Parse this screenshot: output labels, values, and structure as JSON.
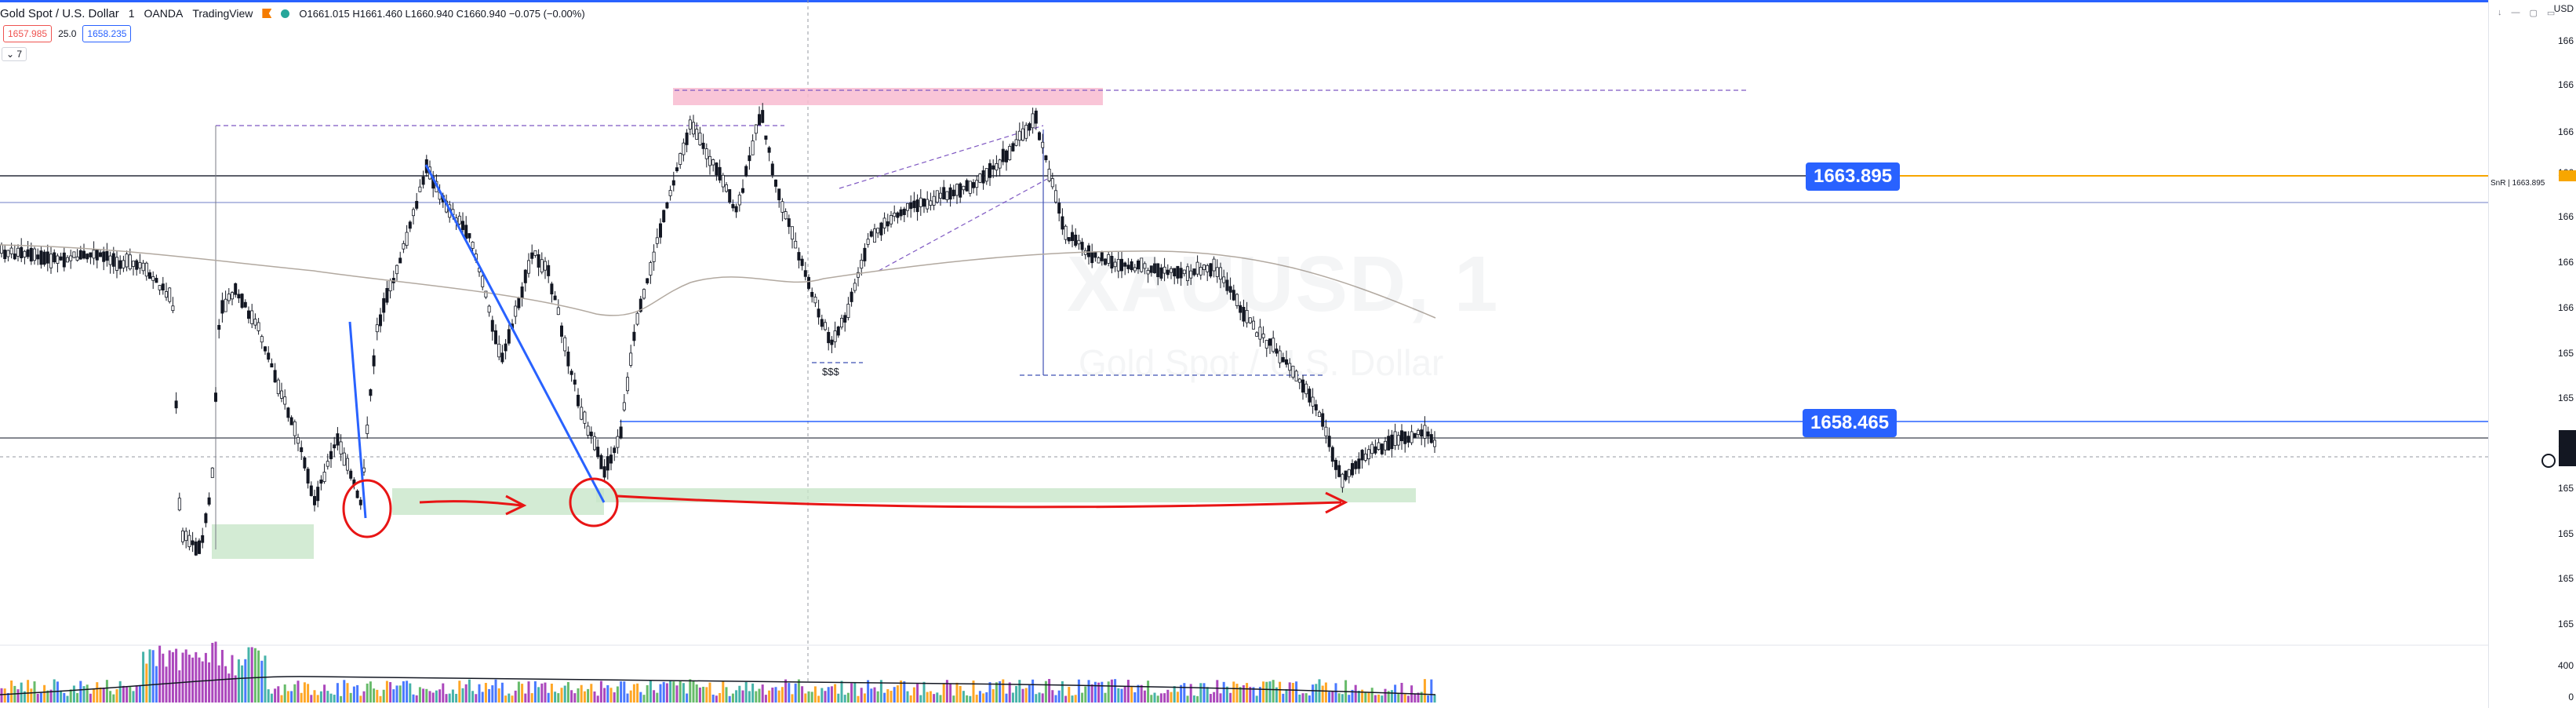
{
  "legend": {
    "symbol_name": "Gold Spot / U.S. Dollar",
    "interval": "1",
    "broker": "OANDA",
    "platform": "TradingView",
    "ohlc": "O1661.015 H1661.460 L1660.940 C1660.940 −0.075 (−0.00%)"
  },
  "quotes": {
    "sell": "1657.985",
    "spread": "25.0",
    "buy": "1658.235"
  },
  "indicators_toggle": "7",
  "watermark": {
    "symbol": "XAUUSD, 1",
    "description": "Gold Spot / U.S. Dollar"
  },
  "drawings": {
    "liquidity_label": "$$$"
  },
  "levels": {
    "resistance_label": "1663.895",
    "support_label": "1658.465",
    "sr_axis_label": "SnR | 1663.895"
  },
  "price_axis": {
    "ticks": [
      "166",
      "166",
      "166",
      "166",
      "166",
      "166",
      "166",
      "165",
      "165",
      "165",
      "165",
      "165",
      "165",
      "165"
    ],
    "volume_ticks": [
      "400",
      "0"
    ],
    "top_label": "USD"
  },
  "colors": {
    "accent": "#2962ff",
    "up_candle": "#131722",
    "down_candle": "#131722",
    "annotation_red": "#e81515",
    "zone_green": "#c8e6c9",
    "zone_pink": "#f8bbd0",
    "sr_orange": "#f7a600",
    "ma_line": "#b2a9a0"
  },
  "icons": [
    "flag-icon",
    "status-dot-icon",
    "collapse-chevron-icon",
    "settings-circle-icon"
  ]
}
